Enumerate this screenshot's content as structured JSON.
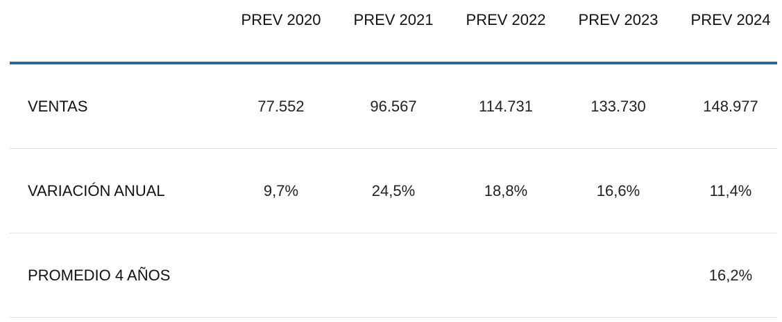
{
  "header": [
    "PREV 2020",
    "PREV 2021",
    "PREV 2022",
    "PREV 2023",
    "PREV 2024"
  ],
  "rows": [
    {
      "label": "VENTAS",
      "values": [
        "77.552",
        "96.567",
        "114.731",
        "133.730",
        "148.977"
      ]
    },
    {
      "label": "VARIACIÓN ANUAL",
      "values": [
        "9,7%",
        "24,5%",
        "18,8%",
        "16,6%",
        "11,4%"
      ]
    },
    {
      "label": "PROMEDIO 4 AÑOS",
      "values": [
        "",
        "",
        "",
        "",
        "16,2%"
      ]
    }
  ],
  "colors": {
    "accent": "#2e6791",
    "divider": "#e2e2e2"
  }
}
